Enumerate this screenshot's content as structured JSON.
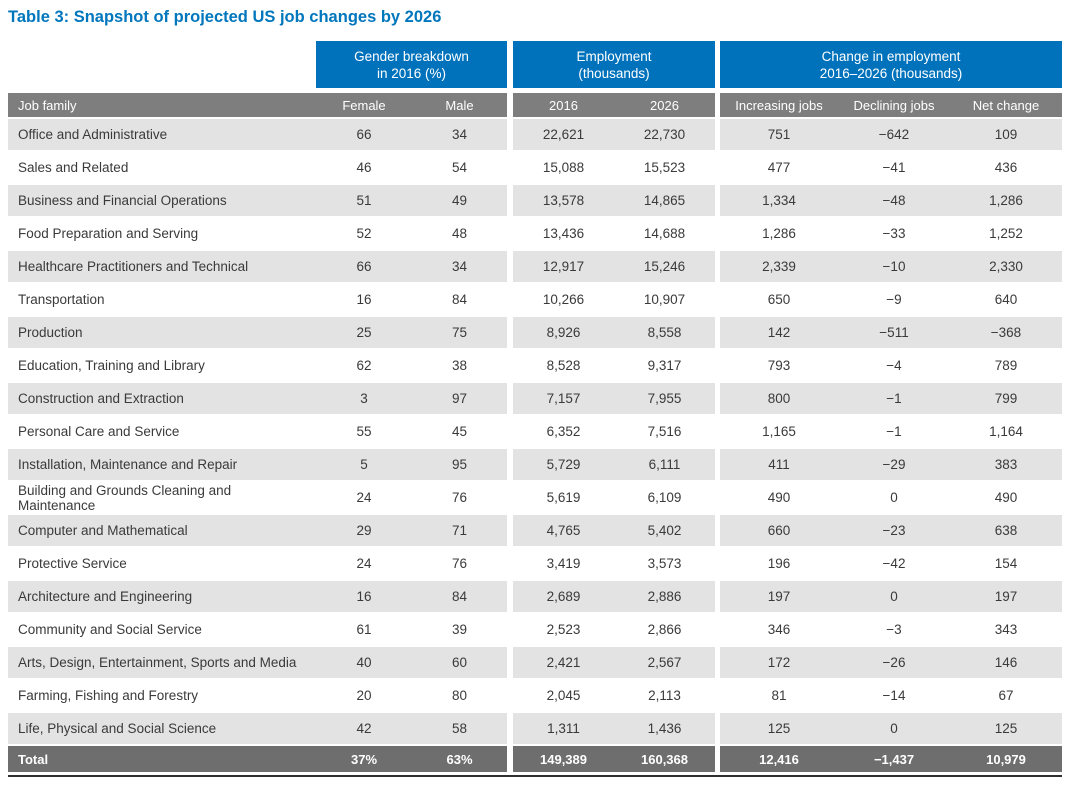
{
  "page": {
    "title": "Table 3: Snapshot of projected US job changes by 2026"
  },
  "colors": {
    "title_blue": "#0076bd",
    "header_blue": "#0072bc",
    "header_gray": "#7e7e7e",
    "row_alt_gray": "#e3e3e3",
    "total_gray": "#6e6e6e",
    "text_dark": "#3a3a3a",
    "bottom_rule": "#2f2f2f"
  },
  "chart_data": {
    "type": "table",
    "title": "Table 3: Snapshot of projected US job changes by 2026",
    "column_groups": [
      {
        "label": "Gender breakdown in 2016 (%)",
        "line1": "Gender breakdown",
        "line2": "in 2016 (%)",
        "spans": [
          "Female",
          "Male"
        ]
      },
      {
        "label": "Employment (thousands)",
        "line1": "Employment",
        "line2": "(thousands)",
        "spans": [
          "2016",
          "2026"
        ]
      },
      {
        "label": "Change in employment 2016–2026 (thousands)",
        "line1": "Change in employment",
        "line2": "2016–2026 (thousands)",
        "spans": [
          "Increasing jobs",
          "Declining jobs",
          "Net change"
        ]
      }
    ],
    "columns": [
      "Job family",
      "Female",
      "Male",
      "2016",
      "2026",
      "Increasing jobs",
      "Declining jobs",
      "Net change"
    ],
    "rows": [
      [
        "Office and Administrative",
        "66",
        "34",
        "22,621",
        "22,730",
        "751",
        "−642",
        "109"
      ],
      [
        "Sales and Related",
        "46",
        "54",
        "15,088",
        "15,523",
        "477",
        "−41",
        "436"
      ],
      [
        "Business and Financial Operations",
        "51",
        "49",
        "13,578",
        "14,865",
        "1,334",
        "−48",
        "1,286"
      ],
      [
        "Food Preparation and Serving",
        "52",
        "48",
        "13,436",
        "14,688",
        "1,286",
        "−33",
        "1,252"
      ],
      [
        "Healthcare Practitioners and Technical",
        "66",
        "34",
        "12,917",
        "15,246",
        "2,339",
        "−10",
        "2,330"
      ],
      [
        "Transportation",
        "16",
        "84",
        "10,266",
        "10,907",
        "650",
        "−9",
        "640"
      ],
      [
        "Production",
        "25",
        "75",
        "8,926",
        "8,558",
        "142",
        "−511",
        "−368"
      ],
      [
        "Education, Training and Library",
        "62",
        "38",
        "8,528",
        "9,317",
        "793",
        "−4",
        "789"
      ],
      [
        "Construction and Extraction",
        "3",
        "97",
        "7,157",
        "7,955",
        "800",
        "−1",
        "799"
      ],
      [
        "Personal Care and Service",
        "55",
        "45",
        "6,352",
        "7,516",
        "1,165",
        "−1",
        "1,164"
      ],
      [
        "Installation, Maintenance and Repair",
        "5",
        "95",
        "5,729",
        "6,111",
        "411",
        "−29",
        "383"
      ],
      [
        "Building and Grounds Cleaning and\nMaintenance",
        "24",
        "76",
        "5,619",
        "6,109",
        "490",
        "0",
        "490"
      ],
      [
        "Computer and Mathematical",
        "29",
        "71",
        "4,765",
        "5,402",
        "660",
        "−23",
        "638"
      ],
      [
        "Protective Service",
        "24",
        "76",
        "3,419",
        "3,573",
        "196",
        "−42",
        "154"
      ],
      [
        "Architecture and Engineering",
        "16",
        "84",
        "2,689",
        "2,886",
        "197",
        "0",
        "197"
      ],
      [
        "Community and Social Service",
        "61",
        "39",
        "2,523",
        "2,866",
        "346",
        "−3",
        "343"
      ],
      [
        "Arts, Design, Entertainment, Sports and Media",
        "40",
        "60",
        "2,421",
        "2,567",
        "172",
        "−26",
        "146"
      ],
      [
        "Farming, Fishing and Forestry",
        "20",
        "80",
        "2,045",
        "2,113",
        "81",
        "−14",
        "67"
      ],
      [
        "Life, Physical and Social Science",
        "42",
        "58",
        "1,311",
        "1,436",
        "125",
        "0",
        "125"
      ]
    ],
    "total_row": [
      "Total",
      "37%",
      "63%",
      "149,389",
      "160,368",
      "12,416",
      "−1,437",
      "10,979"
    ]
  }
}
